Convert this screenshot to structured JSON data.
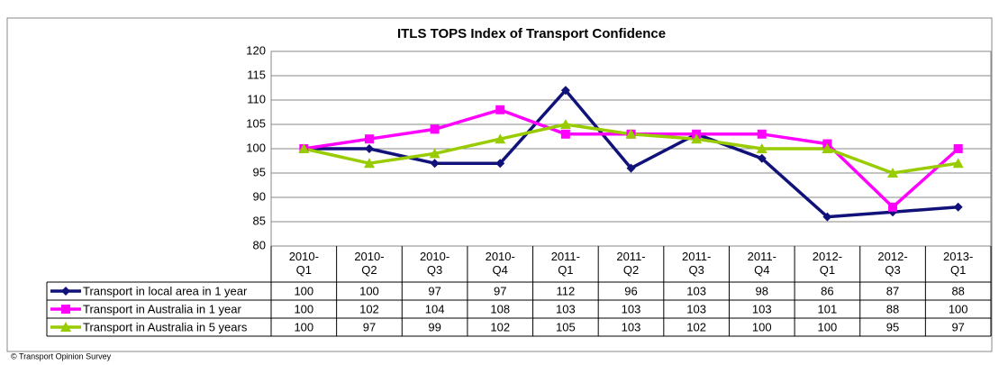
{
  "chart_data": {
    "type": "line",
    "title": "ITLS TOPS Index of Transport Confidence",
    "categories": [
      "2010-Q1",
      "2010-Q2",
      "2010-Q3",
      "2010-Q4",
      "2011-Q1",
      "2011-Q2",
      "2011-Q3",
      "2011-Q4",
      "2012-Q1",
      "2012-Q3",
      "2013-Q1"
    ],
    "series": [
      {
        "name": "Transport in local area in 1 year",
        "color": "#10127a",
        "marker": "diamond",
        "values": [
          100,
          100,
          97,
          97,
          112,
          96,
          103,
          98,
          86,
          87,
          88
        ]
      },
      {
        "name": "Transport in Australia in 1 year",
        "color": "#ff00ff",
        "marker": "square",
        "values": [
          100,
          102,
          104,
          108,
          103,
          103,
          103,
          103,
          101,
          88,
          100
        ]
      },
      {
        "name": "Transport in Australia in 5 years",
        "color": "#99cc00",
        "marker": "triangle",
        "values": [
          100,
          97,
          99,
          102,
          105,
          103,
          102,
          100,
          100,
          95,
          97
        ]
      }
    ],
    "ylim": [
      80,
      120
    ],
    "yticks": [
      80,
      85,
      90,
      95,
      100,
      105,
      110,
      115,
      120
    ],
    "grid": true,
    "source": "© Transport Opinion Survey"
  }
}
